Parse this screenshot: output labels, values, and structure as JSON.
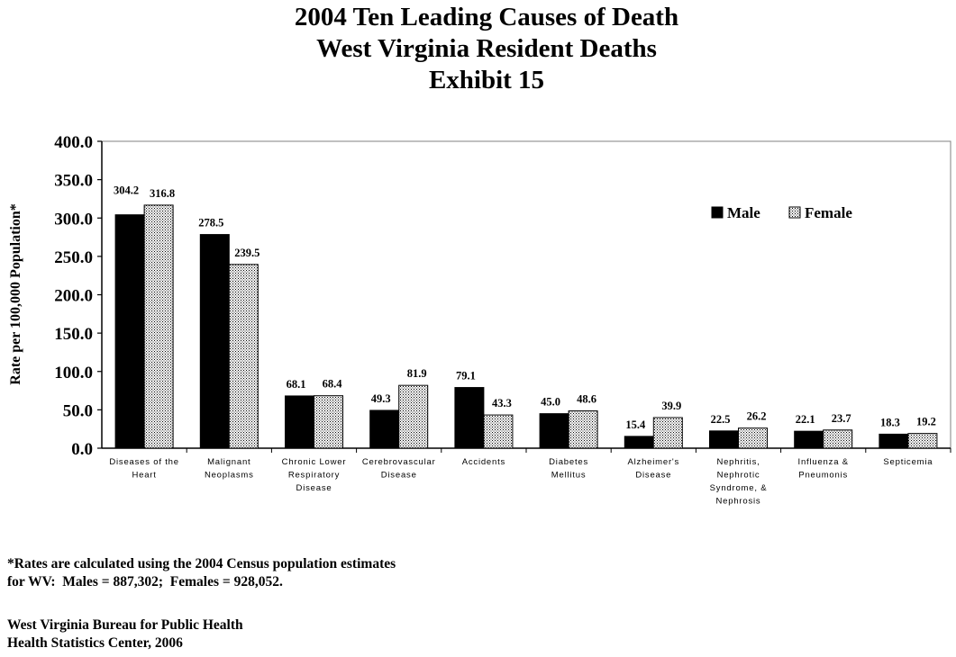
{
  "title_lines": [
    "2004 Ten Leading Causes of Death",
    "West Virginia Resident Deaths",
    "Exhibit 15"
  ],
  "chart_data": {
    "type": "bar",
    "categories": [
      [
        "Diseases of the",
        "Heart"
      ],
      [
        "Malignant",
        "Neoplasms"
      ],
      [
        "Chronic Lower",
        "Respiratory",
        "Disease"
      ],
      [
        "Cerebrovascular",
        "Disease"
      ],
      [
        "Accidents"
      ],
      [
        "Diabetes",
        "Mellitus"
      ],
      [
        "Alzheimer's",
        "Disease"
      ],
      [
        "Nephritis,",
        "Nephrotic",
        "Syndrome, &",
        "Nephrosis"
      ],
      [
        "Influenza &",
        "Pneumonis"
      ],
      [
        "Septicemia"
      ]
    ],
    "series": [
      {
        "name": "Male",
        "values": [
          304.2,
          278.5,
          68.1,
          49.3,
          79.1,
          45.0,
          15.4,
          22.5,
          22.1,
          18.3
        ],
        "labels": [
          "304.2",
          "278.5",
          "68.1",
          "49.3",
          "79.1",
          "45.0",
          "15.4",
          "22.5",
          "22.1",
          "18.3"
        ],
        "color": "#000000"
      },
      {
        "name": "Female",
        "values": [
          316.8,
          239.5,
          68.4,
          81.9,
          43.3,
          48.6,
          39.9,
          26.2,
          23.7,
          19.2
        ],
        "labels": [
          "316.8",
          "239.5",
          "68.4",
          "81.9",
          "43.3",
          "48.6",
          "39.9",
          "26.2",
          "23.7",
          "19.2"
        ],
        "color": "dotted"
      }
    ],
    "ylabel": "Rate per 100,000 Population*",
    "ylim": [
      0,
      400
    ],
    "yticks": [
      "0.0",
      "50.0",
      "100.0",
      "150.0",
      "200.0",
      "250.0",
      "300.0",
      "350.0",
      "400.0"
    ],
    "grid": false,
    "legend_position": "top-right"
  },
  "footnotes": [
    "*Rates are calculated using the 2004 Census population estimates",
    "for WV:  Males = 887,302;  Females = 928,052."
  ],
  "source_lines": [
    "West Virginia Bureau for Public Health",
    "Health Statistics Center, 2006"
  ]
}
